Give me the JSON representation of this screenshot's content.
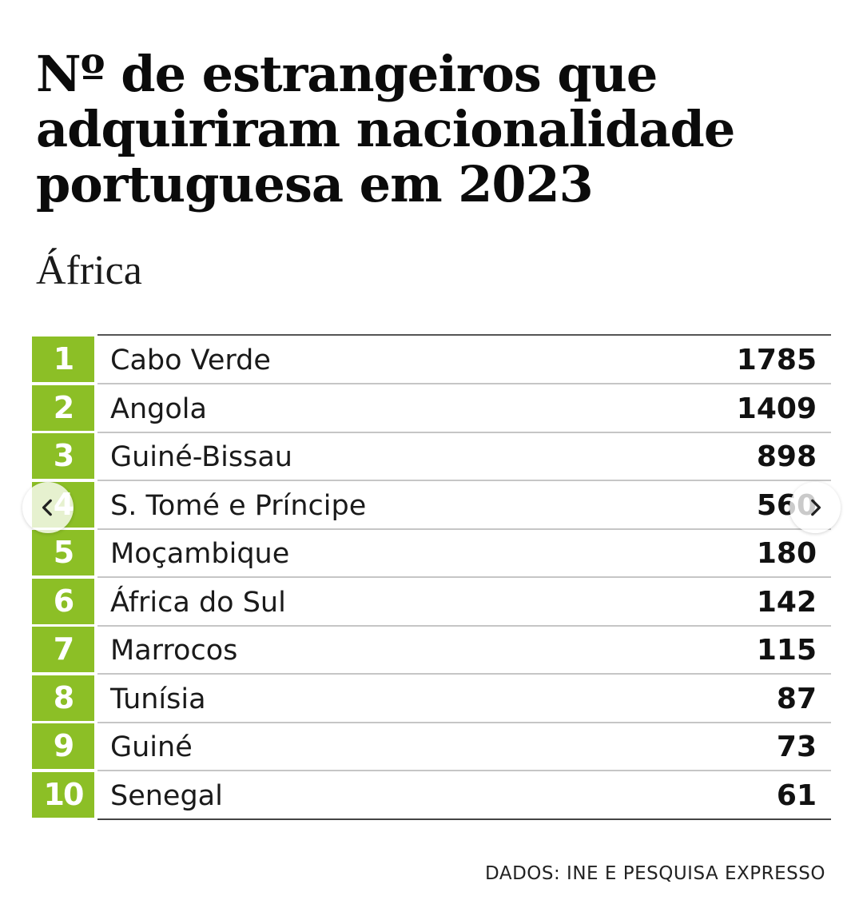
{
  "header": {
    "title": "Nº de estrangeiros que adquiriram nacionalidade portuguesa em 2023",
    "subtitle": "África"
  },
  "table": {
    "rows": [
      {
        "rank": "1",
        "country": "Cabo Verde",
        "value": "1785"
      },
      {
        "rank": "2",
        "country": "Angola",
        "value": "1409"
      },
      {
        "rank": "3",
        "country": "Guiné-Bissau",
        "value": "898"
      },
      {
        "rank": "4",
        "country": "S. Tomé e Príncipe",
        "value": "560"
      },
      {
        "rank": "5",
        "country": "Moçambique",
        "value": "180"
      },
      {
        "rank": "6",
        "country": "África do Sul",
        "value": "142"
      },
      {
        "rank": "7",
        "country": "Marrocos",
        "value": "115"
      },
      {
        "rank": "8",
        "country": "Tunísia",
        "value": "87"
      },
      {
        "rank": "9",
        "country": "Guiné",
        "value": "73"
      },
      {
        "rank": "10",
        "country": "Senegal",
        "value": "61"
      }
    ]
  },
  "footer": {
    "source": "DADOS: INE E PESQUISA EXPRESSO"
  },
  "carousel": {
    "prev_icon": "chevron-left-icon",
    "next_icon": "chevron-right-icon"
  },
  "colors": {
    "rank_background": "#8cbf26",
    "background": "#ffffff",
    "text": "#111111"
  }
}
